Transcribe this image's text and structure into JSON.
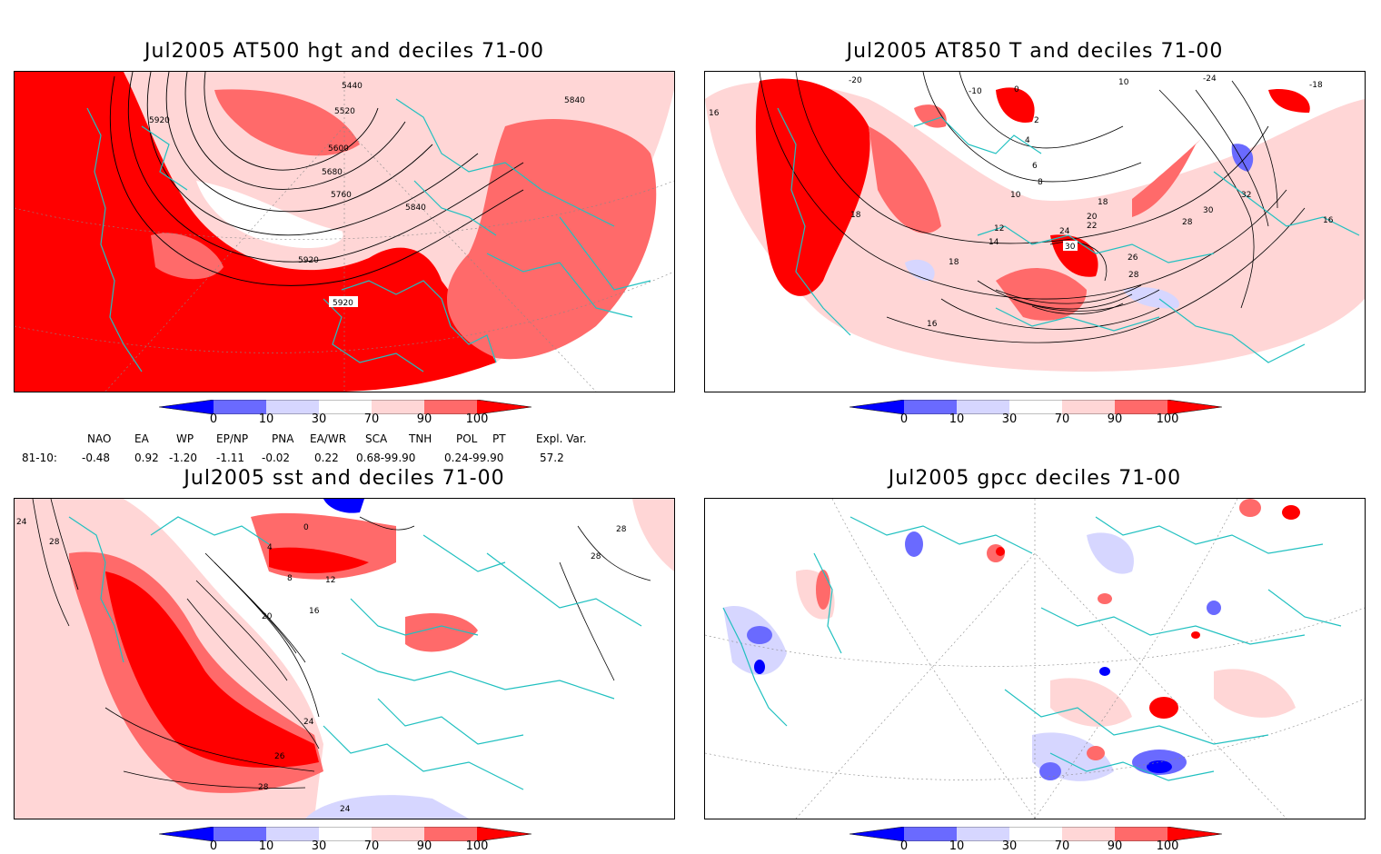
{
  "panels": [
    {
      "id": "tl",
      "title": "Jul2005 AT500 hgt and deciles 71-00",
      "contour_labels": [
        "5440",
        "5520",
        "5600",
        "5680",
        "5760",
        "5840",
        "5840",
        "5920",
        "5920",
        "5920"
      ]
    },
    {
      "id": "tr",
      "title": "Jul2005 AT850 T and deciles 71-00",
      "contour_labels": [
        "-20",
        "-10",
        "0",
        "2",
        "4",
        "6",
        "8",
        "10",
        "10",
        "12",
        "14",
        "16",
        "16",
        "16",
        "18",
        "18",
        "18",
        "20",
        "22",
        "24",
        "26",
        "28",
        "28",
        "30",
        "30",
        "32",
        "-18",
        "-24"
      ]
    },
    {
      "id": "bl",
      "title": "Jul2005 sst and deciles 71-00",
      "contour_labels": [
        "24",
        "28",
        "0",
        "4",
        "8",
        "12",
        "16",
        "20",
        "24",
        "26",
        "28",
        "24",
        "28",
        "28"
      ]
    },
    {
      "id": "br",
      "title": "Jul2005 gpcc deciles 71-00",
      "contour_labels": []
    }
  ],
  "colorbar": {
    "ticks": [
      "0",
      "10",
      "30",
      "70",
      "90",
      "100"
    ],
    "colors": [
      "#0000ff",
      "#6a6aff",
      "#d6d6ff",
      "#ffffff",
      "#ffd6d6",
      "#ff6a6a",
      "#ff0000"
    ]
  },
  "indices": {
    "headers": [
      "NAO",
      "EA",
      "WP",
      "EP/NP",
      "PNA",
      "EA/WR",
      "SCA",
      "TNH",
      "POL",
      "PT",
      "Expl. Var."
    ],
    "row_label": "81-10:",
    "values": [
      "-0.48",
      "0.92",
      "-1.20",
      "-1.11",
      "-0.02",
      "0.22",
      "0.68-99.90",
      "",
      "0.24-99.90",
      "",
      "57.2"
    ]
  },
  "colors": {
    "coast": "#20c0c0",
    "frame": "#000000"
  }
}
